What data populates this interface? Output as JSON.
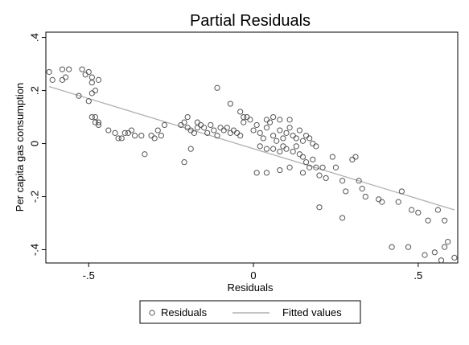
{
  "chart_data": {
    "type": "scatter",
    "title": "Partial Residuals",
    "xlabel": "Residuals",
    "ylabel": "Per capita gas consumption",
    "xlim": [
      -0.63,
      0.62
    ],
    "ylim": [
      -0.45,
      0.42
    ],
    "x_ticks": [
      -0.5,
      0,
      0.5
    ],
    "x_tick_labels": [
      "-.5",
      "0",
      ".5"
    ],
    "y_ticks": [
      -0.4,
      -0.2,
      0,
      0.2,
      0.4
    ],
    "y_tick_labels": [
      "-.4",
      "-.2",
      "0",
      ".2",
      ".4"
    ],
    "grid": false,
    "legend_position": "bottom",
    "colors": {
      "points": "#555555",
      "fit_line": "#b0b0b0",
      "frame": "#000000"
    },
    "series": [
      {
        "name": "Residuals",
        "kind": "scatter",
        "marker": "hollow-circle",
        "points": [
          [
            -0.62,
            0.27
          ],
          [
            -0.61,
            0.24
          ],
          [
            -0.58,
            0.24
          ],
          [
            -0.58,
            0.28
          ],
          [
            -0.57,
            0.25
          ],
          [
            -0.56,
            0.28
          ],
          [
            -0.53,
            0.18
          ],
          [
            -0.52,
            0.28
          ],
          [
            -0.51,
            0.26
          ],
          [
            -0.5,
            0.27
          ],
          [
            -0.49,
            0.25
          ],
          [
            -0.49,
            0.23
          ],
          [
            -0.48,
            0.2
          ],
          [
            -0.49,
            0.19
          ],
          [
            -0.47,
            0.24
          ],
          [
            -0.5,
            0.16
          ],
          [
            -0.49,
            0.1
          ],
          [
            -0.48,
            0.1
          ],
          [
            -0.47,
            0.08
          ],
          [
            -0.48,
            0.08
          ],
          [
            -0.47,
            0.07
          ],
          [
            -0.44,
            0.05
          ],
          [
            -0.42,
            0.04
          ],
          [
            -0.41,
            0.02
          ],
          [
            -0.4,
            0.02
          ],
          [
            -0.39,
            0.04
          ],
          [
            -0.38,
            0.04
          ],
          [
            -0.37,
            0.05
          ],
          [
            -0.36,
            0.03
          ],
          [
            -0.34,
            0.03
          ],
          [
            -0.33,
            -0.04
          ],
          [
            -0.31,
            0.03
          ],
          [
            -0.3,
            0.02
          ],
          [
            -0.29,
            0.05
          ],
          [
            -0.28,
            0.03
          ],
          [
            -0.27,
            0.07
          ],
          [
            -0.22,
            0.07
          ],
          [
            -0.21,
            0.08
          ],
          [
            -0.2,
            0.06
          ],
          [
            -0.2,
            0.1
          ],
          [
            -0.19,
            0.05
          ],
          [
            -0.18,
            0.04
          ],
          [
            -0.17,
            0.06
          ],
          [
            -0.17,
            0.08
          ],
          [
            -0.16,
            0.07
          ],
          [
            -0.15,
            0.06
          ],
          [
            -0.14,
            0.04
          ],
          [
            -0.13,
            0.07
          ],
          [
            -0.12,
            0.05
          ],
          [
            -0.11,
            0.03
          ],
          [
            -0.1,
            0.06
          ],
          [
            -0.09,
            0.05
          ],
          [
            -0.08,
            0.06
          ],
          [
            -0.07,
            0.04
          ],
          [
            -0.06,
            0.05
          ],
          [
            -0.05,
            0.04
          ],
          [
            -0.04,
            0.03
          ],
          [
            -0.03,
            0.08
          ],
          [
            -0.02,
            0.1
          ],
          [
            -0.01,
            0.09
          ],
          [
            0.0,
            0.05
          ],
          [
            0.01,
            0.07
          ],
          [
            0.02,
            0.04
          ],
          [
            0.03,
            0.02
          ],
          [
            0.04,
            0.06
          ],
          [
            0.05,
            0.08
          ],
          [
            0.06,
            0.03
          ],
          [
            0.07,
            0.01
          ],
          [
            0.08,
            0.05
          ],
          [
            0.09,
            0.02
          ],
          [
            0.1,
            0.04
          ],
          [
            0.11,
            0.06
          ],
          [
            0.12,
            0.03
          ],
          [
            0.13,
            0.02
          ],
          [
            0.14,
            0.05
          ],
          [
            0.15,
            0.01
          ],
          [
            0.16,
            0.03
          ],
          [
            0.17,
            0.02
          ],
          [
            0.18,
            0.0
          ],
          [
            0.19,
            -0.01
          ],
          [
            -0.21,
            -0.07
          ],
          [
            -0.19,
            -0.02
          ],
          [
            -0.11,
            0.21
          ],
          [
            -0.07,
            0.15
          ],
          [
            -0.04,
            0.12
          ],
          [
            -0.03,
            0.1
          ],
          [
            0.04,
            0.09
          ],
          [
            0.06,
            0.1
          ],
          [
            0.08,
            0.09
          ],
          [
            0.11,
            0.09
          ],
          [
            0.02,
            -0.01
          ],
          [
            0.04,
            -0.02
          ],
          [
            0.06,
            -0.02
          ],
          [
            0.08,
            -0.03
          ],
          [
            0.09,
            -0.01
          ],
          [
            0.1,
            -0.02
          ],
          [
            0.12,
            -0.03
          ],
          [
            0.13,
            -0.01
          ],
          [
            0.14,
            -0.04
          ],
          [
            0.15,
            -0.05
          ],
          [
            0.16,
            -0.07
          ],
          [
            0.17,
            -0.09
          ],
          [
            0.18,
            -0.06
          ],
          [
            0.19,
            -0.09
          ],
          [
            0.21,
            -0.09
          ],
          [
            0.22,
            -0.13
          ],
          [
            0.24,
            -0.05
          ],
          [
            0.25,
            -0.09
          ],
          [
            0.01,
            -0.11
          ],
          [
            0.04,
            -0.11
          ],
          [
            0.08,
            -0.1
          ],
          [
            0.11,
            -0.09
          ],
          [
            0.15,
            -0.11
          ],
          [
            0.2,
            -0.12
          ],
          [
            0.27,
            -0.14
          ],
          [
            0.28,
            -0.18
          ],
          [
            0.3,
            -0.06
          ],
          [
            0.31,
            -0.05
          ],
          [
            0.32,
            -0.14
          ],
          [
            0.33,
            -0.17
          ],
          [
            0.34,
            -0.2
          ],
          [
            0.2,
            -0.24
          ],
          [
            0.27,
            -0.28
          ],
          [
            0.38,
            -0.21
          ],
          [
            0.39,
            -0.22
          ],
          [
            0.44,
            -0.22
          ],
          [
            0.45,
            -0.18
          ],
          [
            0.48,
            -0.25
          ],
          [
            0.5,
            -0.26
          ],
          [
            0.53,
            -0.29
          ],
          [
            0.56,
            -0.25
          ],
          [
            0.58,
            -0.29
          ],
          [
            0.42,
            -0.39
          ],
          [
            0.47,
            -0.39
          ],
          [
            0.52,
            -0.42
          ],
          [
            0.55,
            -0.41
          ],
          [
            0.57,
            -0.44
          ],
          [
            0.58,
            -0.39
          ],
          [
            0.59,
            -0.37
          ],
          [
            0.61,
            -0.43
          ]
        ]
      },
      {
        "name": "Fitted values",
        "kind": "line",
        "points": [
          [
            -0.62,
            0.215
          ],
          [
            0.61,
            -0.25
          ]
        ]
      }
    ]
  },
  "legend": {
    "items": [
      {
        "label": "Residuals",
        "icon": "hollow-circle-icon"
      },
      {
        "label": "Fitted values",
        "icon": "line-icon"
      }
    ]
  }
}
